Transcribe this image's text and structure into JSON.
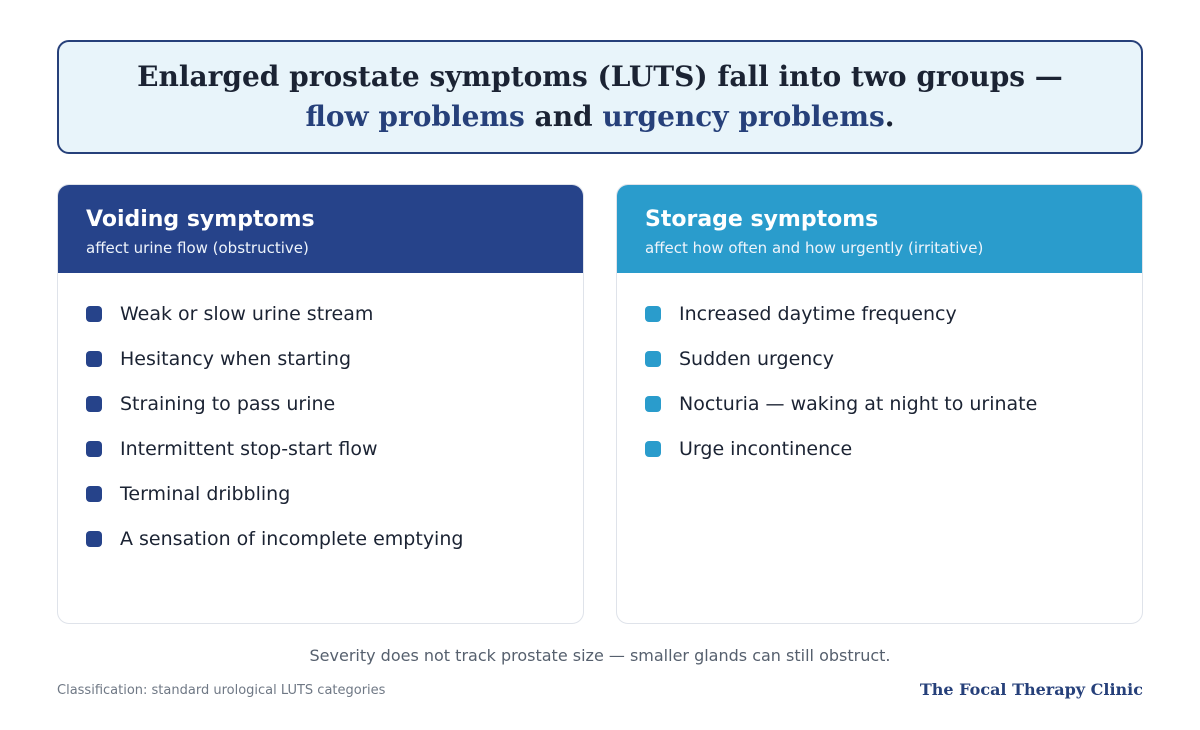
{
  "headline": {
    "part1": "Enlarged prostate symptoms (LUTS) fall into two groups — ",
    "accent1": "flow problems",
    "part2": " and ",
    "accent2": "urgency problems",
    "part3": "."
  },
  "voiding": {
    "title": "Voiding symptoms",
    "subtitle": "affect urine flow (obstructive)",
    "items": [
      "Weak or slow urine stream",
      "Hesitancy when starting",
      "Straining to pass urine",
      "Intermittent stop-start flow",
      "Terminal dribbling",
      "A sensation of incomplete emptying"
    ]
  },
  "storage": {
    "title": "Storage symptoms",
    "subtitle": "affect how often and how urgently (irritative)",
    "items": [
      "Increased daytime frequency",
      "Sudden urgency",
      "Nocturia — waking at night to urinate",
      "Urge incontinence"
    ]
  },
  "footnote": "Severity does not track prostate size — smaller glands can still obstruct.",
  "source": "Classification: standard urological LUTS categories",
  "brand": "The Focal Therapy Clinic",
  "colors": {
    "voiding_accent": "#26438a",
    "storage_accent": "#2a9ccc",
    "headline_border": "#26407a",
    "headline_bg": "#e8f4fa"
  }
}
